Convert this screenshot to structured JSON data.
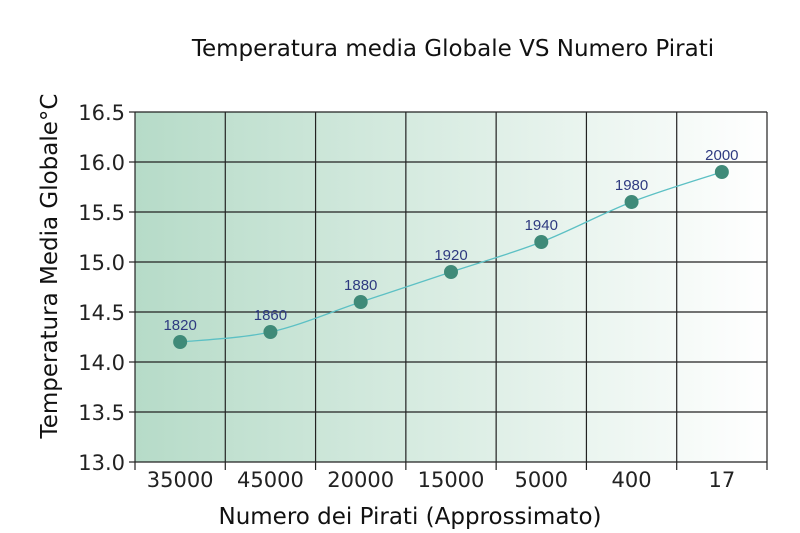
{
  "chart_data": {
    "type": "line",
    "title": "Temperatura media Globale VS Numero Pirati",
    "xlabel": "Numero dei Pirati (Approssimato)",
    "ylabel": "Temperatura Media Globale°C",
    "categories": [
      "35000",
      "45000",
      "20000",
      "15000",
      "5000",
      "400",
      "17"
    ],
    "values": [
      14.2,
      14.3,
      14.6,
      14.9,
      15.2,
      15.6,
      15.9
    ],
    "point_labels": [
      "1820",
      "1860",
      "1880",
      "1920",
      "1940",
      "1980",
      "2000"
    ],
    "ylim": [
      13.0,
      16.5
    ],
    "yticks": [
      "13.0",
      "13.5",
      "14.0",
      "14.5",
      "15.0",
      "15.5",
      "16.0",
      "16.5"
    ],
    "grid": true,
    "colors": {
      "background_left": "#b6dbc8",
      "background_right": "#ffffff",
      "marker": "#3f8a78",
      "line": "#5cc0c4",
      "point_label": "#2e3a80"
    }
  }
}
